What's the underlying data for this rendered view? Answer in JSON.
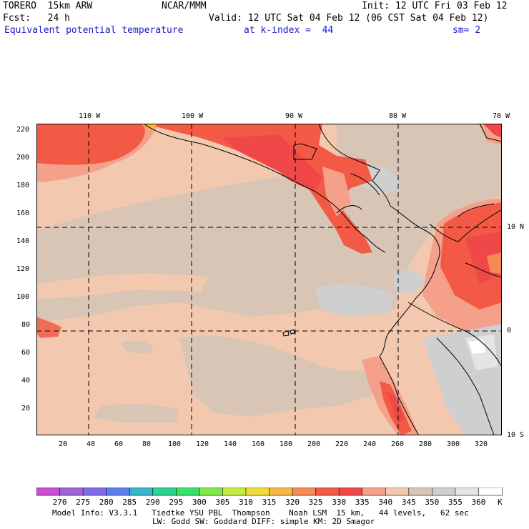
{
  "header": {
    "model": "TORERO  15km ARW",
    "org": "NCAR/MMM",
    "init": "Init: 12 UTC Fri 03 Feb 12",
    "fcst": "Fcst:   24 h",
    "valid": "Valid: 12 UTC Sat 04 Feb 12 (06 CST Sat 04 Feb 12)",
    "field": "Equivalent potential temperature",
    "level": "at k-index =  44",
    "smooth": "sm= 2"
  },
  "top_ticks": [
    "110 W",
    "100 W",
    "90 W",
    "80 W",
    "70 W"
  ],
  "left_ticks": [
    "220",
    "200",
    "180",
    "160",
    "140",
    "120",
    "100",
    "80",
    "60",
    "40",
    "20"
  ],
  "bottom_ticks": [
    "20",
    "40",
    "60",
    "80",
    "100",
    "120",
    "140",
    "160",
    "180",
    "200",
    "220",
    "240",
    "260",
    "280",
    "300",
    "320"
  ],
  "right_ticks": [
    "10 N",
    "0",
    "10 S"
  ],
  "colorbar": {
    "labels": [
      "270",
      "275",
      "280",
      "285",
      "290",
      "295",
      "300",
      "305",
      "310",
      "315",
      "320",
      "325",
      "330",
      "335",
      "340",
      "345",
      "350",
      "355",
      "360"
    ],
    "unit": "K",
    "colors": [
      "#c94fd0",
      "#a064d8",
      "#7f6ce6",
      "#5f7ff0",
      "#35b8c8",
      "#2ad38f",
      "#3ae06a",
      "#7fe84a",
      "#c4ec40",
      "#eedc3a",
      "#f5b945",
      "#f58a55",
      "#f25a45",
      "#f04848",
      "#f4a08a",
      "#f2c9ae",
      "#d8c5b6",
      "#cfcfcf",
      "#e4e4e4",
      "#ffffff"
    ]
  },
  "footer": {
    "line1": "Model Info: V3.3.1   Tiedtke YSU PBL  Thompson    Noah LSM  15 km,   44 levels,   62 sec",
    "line2": "LW: Godd SW: Goddard DIFF: simple KM: 2D Smagor"
  }
}
